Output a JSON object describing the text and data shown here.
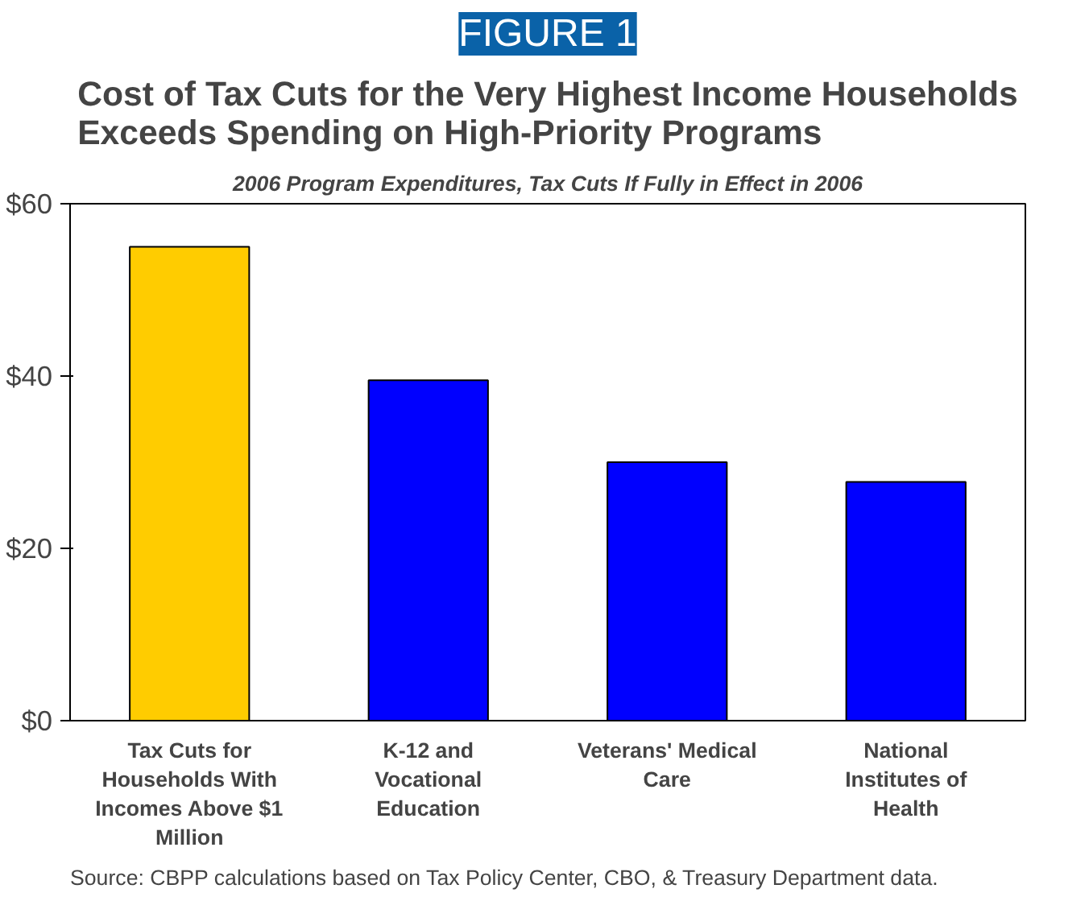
{
  "chart_data": {
    "type": "bar",
    "title": "Cost of Tax Cuts for the Very Highest Income Households Exceeds Spending on High-Priority Programs",
    "subtitle": "2006 Program Expenditures, Tax Cuts If Fully in Effect in 2006",
    "categories": [
      "Tax Cuts for Households With Incomes Above $1 Million",
      "K-12 and Vocational Education",
      "Veterans' Medical Care",
      "National Institutes of Health"
    ],
    "values": [
      55,
      39.5,
      30,
      27.7
    ],
    "colors": [
      "#ffcc00",
      "#0000ff",
      "#0000ff",
      "#0000ff"
    ],
    "ylim": [
      0,
      60
    ],
    "yticks": [
      {
        "value": 0,
        "label": "$0"
      },
      {
        "value": 20,
        "label": "$20"
      },
      {
        "value": 40,
        "label": "$40"
      },
      {
        "value": 60,
        "label": "$60"
      }
    ],
    "annotations": [
      "FIGURE 1",
      "Source:  CBPP calculations based on Tax Policy Center, CBO, & Treasury Department data."
    ]
  }
}
